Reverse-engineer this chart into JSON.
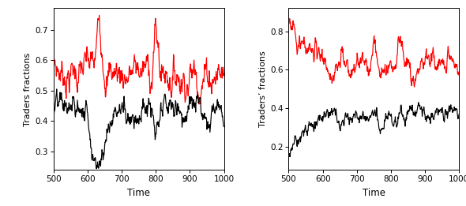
{
  "xlim": [
    500,
    1000
  ],
  "xticks": [
    500,
    600,
    700,
    800,
    900,
    1000
  ],
  "xlabel": "Time",
  "left_ylabel": "Traders fractions",
  "right_ylabel": "Traders’ fractions",
  "left_ylim": [
    0.24,
    0.77
  ],
  "left_yticks": [
    0.3,
    0.4,
    0.5,
    0.6,
    0.7
  ],
  "right_ylim": [
    0.08,
    0.92
  ],
  "right_yticks": [
    0.2,
    0.4,
    0.6,
    0.8
  ],
  "red_color": "#FF0000",
  "black_color": "#000000",
  "bg_color": "#FFFFFF",
  "n_points": 501
}
